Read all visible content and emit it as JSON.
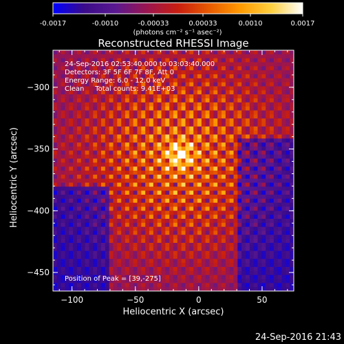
{
  "colorbar": {
    "ticks": [
      "-0.0017",
      "-0.0010",
      "-0.00033",
      "0.00033",
      "0.0010",
      "0.0017"
    ],
    "units_label": "(photons cm⁻² s⁻¹ asec⁻²)"
  },
  "annotations": {
    "time_range": "24-Sep-2016 02:53:40.000 to 03:03:40.000",
    "detectors": "Detectors: 3F 5F 6F 7F 8F, Att 0",
    "energy": "Energy Range: 6.0 - 12.0 keV",
    "clean": "Clean     Total counts: 9.41E+03",
    "peak": "Position of Peak = [39,-275]"
  },
  "footer": {
    "timestamp": "24-Sep-2016 21:43"
  },
  "chart_data": {
    "type": "heatmap",
    "title": "Reconstructed RHESSI Image",
    "xlabel": "Heliocentric X (arcsec)",
    "ylabel": "Heliocentric Y (arcsec)",
    "xlim": [
      -115,
      75
    ],
    "ylim": [
      -465,
      -270
    ],
    "x_ticks": [
      -100,
      -50,
      0,
      50
    ],
    "y_ticks": [
      -300,
      -350,
      -400,
      -450
    ],
    "x_tick_labels": [
      "−100",
      "−50",
      "0",
      "50"
    ],
    "y_tick_labels": [
      "−300",
      "−350",
      "−400",
      "−450"
    ],
    "colormap": [
      "#0000ff",
      "#3a0b8a",
      "#5a1890",
      "#9a1550",
      "#c81e10",
      "#e85a00",
      "#ff9a00",
      "#ffd040",
      "#ffffff"
    ],
    "value_range": [
      -0.0017,
      0.0017
    ],
    "peak": [
      39,
      -275
    ],
    "bright_region_center": [
      -15,
      -355
    ],
    "contour_spacing_arcsec": 12
  }
}
